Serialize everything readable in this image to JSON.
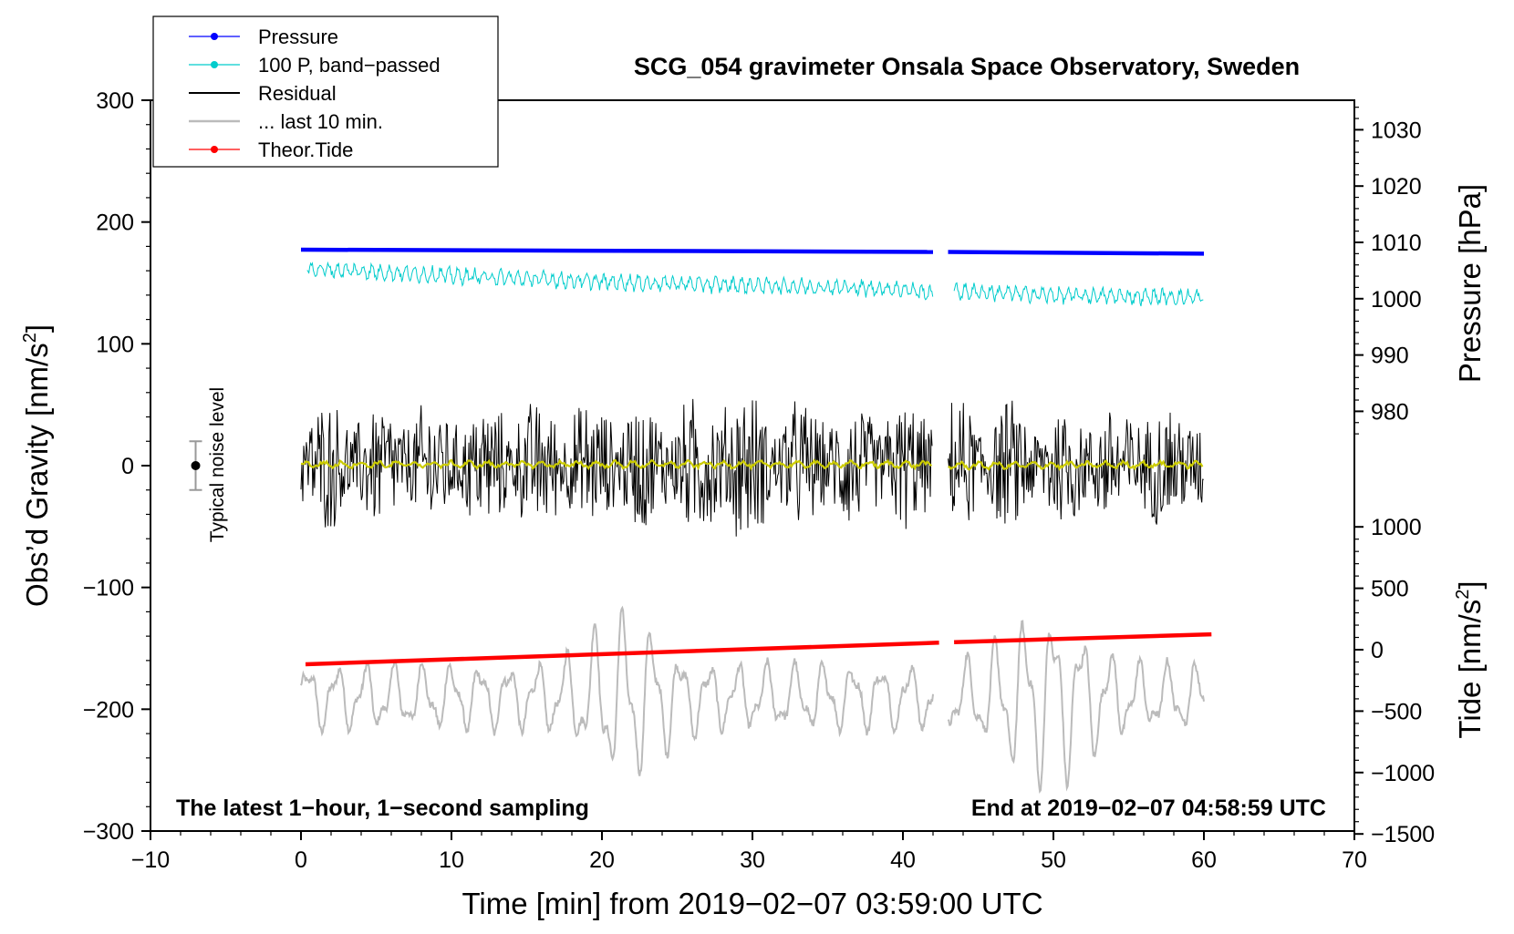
{
  "chart_data": {
    "type": "line",
    "title": "SCG_054 gravimeter Onsala Space Observatory, Sweden",
    "xlabel": "Time [min] from 2019−02−07 03:59:00 UTC",
    "ylabel_left": "Obs’d Gravity [nm/s",
    "ylabel_left_sup": "2",
    "ylabel_left_end": "]",
    "ylabel_right_top": "Pressure [hPa]",
    "ylabel_right_bottom": "Tide [nm/s",
    "ylabel_right_bottom_sup": "2",
    "ylabel_right_bottom_end": "]",
    "xlim": [
      -10,
      70
    ],
    "ylim_left": [
      -300,
      300
    ],
    "x_ticks": [
      "−10",
      "0",
      "10",
      "20",
      "30",
      "40",
      "50",
      "60",
      "70"
    ],
    "y_left_ticks": [
      "300",
      "200",
      "100",
      "0",
      "−100",
      "−200",
      "−300"
    ],
    "y_right_pressure_ticks": [
      "1030",
      "1020",
      "1010",
      "1000",
      "990",
      "980"
    ],
    "y_right_pressure_values": [
      1030,
      1020,
      1010,
      1000,
      990,
      980
    ],
    "y_right_tide_ticks": [
      "1000",
      "500",
      "0",
      "−500",
      "−1000",
      "−1500"
    ],
    "y_right_tide_values": [
      1000,
      500,
      0,
      -500,
      -1000,
      -1500
    ],
    "legend": [
      {
        "label": "Pressure",
        "color": "#0000ff",
        "marker": true
      },
      {
        "label": "100 P, band−passed",
        "color": "#00cccc",
        "marker": true
      },
      {
        "label": "Residual",
        "color": "#000000",
        "marker": false
      },
      {
        "label": "... last 10 min.",
        "color": "#bbbbbb",
        "marker": false
      },
      {
        "label": "Theor.Tide",
        "color": "#ff0000",
        "marker": true
      }
    ],
    "legend_position": "top-left",
    "annotation_left": "The latest 1−hour, 1−second sampling",
    "annotation_right": "End at 2019−02−07 04:58:59 UTC",
    "noise_label": "Typical noise level",
    "noise_level": {
      "x": -7,
      "center": 0,
      "half_range": 20
    },
    "data_gap_minutes": [
      42.0,
      43.0
    ],
    "series": [
      {
        "name": "Pressure",
        "unit": "hPa",
        "color": "#0000ff",
        "x": [
          0,
          42,
          43,
          60
        ],
        "values": [
          1008.7,
          1008.3,
          1008.3,
          1008.0
        ]
      },
      {
        "name": "100 P, band−passed",
        "unit": "nm/s2 (left axis)",
        "color": "#00cccc",
        "x": [
          0,
          10,
          20,
          30,
          40,
          42,
          44,
          50,
          60
        ],
        "values": [
          162,
          156,
          151,
          148,
          145,
          141,
          143,
          140,
          138
        ],
        "amplitude": 8
      },
      {
        "name": "Residual",
        "unit": "nm/s2 (left axis)",
        "color": "#000000",
        "x": [
          0,
          42,
          43,
          60
        ],
        "values": [
          0,
          0,
          0,
          0
        ],
        "amplitude": 60
      },
      {
        "name": "... last 10 min.",
        "unit": "nm/s2 (left axis)",
        "color": "#bbbbbb",
        "x": [
          0,
          42,
          43,
          60
        ],
        "values": [
          -190,
          -190,
          -190,
          -190
        ],
        "amplitude": 30
      },
      {
        "name": "Theor.Tide",
        "unit": "nm/s2 (tide axis)",
        "color": "#ff0000",
        "x": [
          0,
          42,
          43,
          60.5
        ],
        "values": [
          -120,
          55,
          60,
          125
        ]
      },
      {
        "name": "Residual smoothed",
        "unit": "nm/s2 (left axis)",
        "color": "#cccc00",
        "x": [
          0,
          42,
          43,
          60
        ],
        "values": [
          1,
          1,
          0,
          1
        ]
      }
    ]
  }
}
